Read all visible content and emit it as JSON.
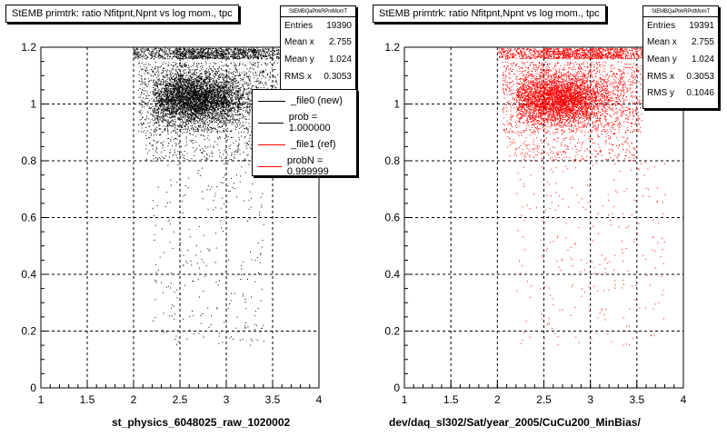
{
  "chart_data": [
    {
      "type": "scatter",
      "title": "StEMB primtrk: ratio Nfitpnt,Npnt vs log mom., tpc",
      "xlabel": "st_physics_6048025_raw_1020002",
      "ylabel": "",
      "xlim": [
        1,
        4
      ],
      "ylim": [
        0,
        1.2
      ],
      "xticks": [
        "1",
        "1.5",
        "2",
        "2.5",
        "3",
        "3.5",
        "4"
      ],
      "yticks": [
        "0",
        "0.2",
        "0.4",
        "0.6",
        "0.8",
        "1",
        "1.2"
      ],
      "grid": true,
      "marker_color": "#000000",
      "stats": {
        "name": "StEMBQaPtrkRPntMomT",
        "rows": [
          {
            "label": "Entries",
            "value": "19390"
          },
          {
            "label": "Mean x",
            "value": "2.755"
          },
          {
            "label": "Mean y",
            "value": "1.024"
          },
          {
            "label": "RMS x",
            "value": "0.3053"
          }
        ]
      },
      "legend": [
        {
          "label": "_file0 (new)",
          "color": "#000000"
        },
        {
          "label": "prob = 1.000000",
          "color": "#000000"
        },
        {
          "label": "_file1 (ref)",
          "color": "#ff0000"
        },
        {
          "label": "probN = 0.999999",
          "color": "#ff0000"
        }
      ],
      "distribution": {
        "dense_region": {
          "x": [
            2.2,
            3.4
          ],
          "y": [
            0.9,
            1.15
          ]
        },
        "top_band": {
          "x": [
            2.0,
            3.6
          ],
          "y": [
            1.15,
            1.2
          ]
        },
        "sparse_tail": {
          "x": [
            2.0,
            3.5
          ],
          "y": [
            0.15,
            0.9
          ]
        }
      }
    },
    {
      "type": "scatter",
      "title": "StEMB primtrk: ratio Nfitpnt,Npnt vs log mom., tpc",
      "xlabel": "dev/daq_sl302/Sat/year_2005/CuCu200_MinBias/",
      "ylabel": "",
      "xlim": [
        1,
        4
      ],
      "ylim": [
        0,
        1.2
      ],
      "xticks": [
        "1",
        "1.5",
        "2",
        "2.5",
        "3",
        "3.5",
        "4"
      ],
      "yticks": [
        "0",
        "0.2",
        "0.4",
        "0.6",
        "0.8",
        "1",
        "1.2"
      ],
      "grid": true,
      "marker_color": "#ff0000",
      "stats": {
        "name": "StEMBQaPtrkRPntMomT",
        "rows": [
          {
            "label": "Entries",
            "value": "19391"
          },
          {
            "label": "Mean x",
            "value": "2.755"
          },
          {
            "label": "Mean y",
            "value": "1.024"
          },
          {
            "label": "RMS x",
            "value": "0.3053"
          },
          {
            "label": "RMS y",
            "value": "0.1046"
          }
        ]
      },
      "distribution": {
        "dense_region": {
          "x": [
            2.2,
            3.4
          ],
          "y": [
            0.9,
            1.15
          ]
        },
        "top_band": {
          "x": [
            2.0,
            3.6
          ],
          "y": [
            1.15,
            1.2
          ]
        },
        "sparse_tail": {
          "x": [
            2.0,
            3.9
          ],
          "y": [
            0.15,
            0.9
          ]
        }
      }
    }
  ]
}
